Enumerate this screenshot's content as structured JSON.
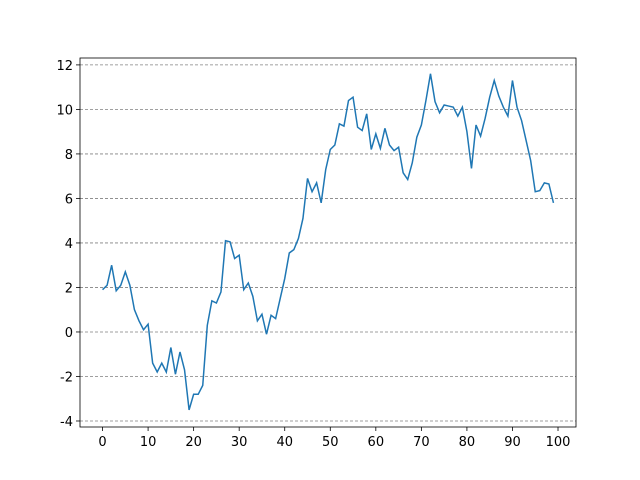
{
  "chart_data": {
    "type": "line",
    "x": [
      0,
      1,
      2,
      3,
      4,
      5,
      6,
      7,
      8,
      9,
      10,
      11,
      12,
      13,
      14,
      15,
      16,
      17,
      18,
      19,
      20,
      21,
      22,
      23,
      24,
      25,
      26,
      27,
      28,
      29,
      30,
      31,
      32,
      33,
      34,
      35,
      36,
      37,
      38,
      39,
      40,
      41,
      42,
      43,
      44,
      45,
      46,
      47,
      48,
      49,
      50,
      51,
      52,
      53,
      54,
      55,
      56,
      57,
      58,
      59,
      60,
      61,
      62,
      63,
      64,
      65,
      66,
      67,
      68,
      69,
      70,
      71,
      72,
      73,
      74,
      75,
      76,
      77,
      78,
      79,
      80,
      81,
      82,
      83,
      84,
      85,
      86,
      87,
      88,
      89,
      90,
      91,
      92,
      93,
      94,
      95,
      96,
      97,
      98,
      99
    ],
    "series": [
      {
        "color": "#1f77b4",
        "values": [
          1.9,
          2.1,
          3.0,
          1.85,
          2.1,
          2.7,
          2.1,
          1.0,
          0.5,
          0.1,
          0.35,
          -1.4,
          -1.8,
          -1.4,
          -1.8,
          -0.7,
          -1.9,
          -0.9,
          -1.7,
          -3.5,
          -2.8,
          -2.8,
          -2.4,
          0.3,
          1.4,
          1.3,
          1.8,
          4.1,
          4.05,
          3.3,
          3.45,
          1.9,
          2.2,
          1.6,
          0.5,
          0.8,
          -0.1,
          0.75,
          0.6,
          1.5,
          2.4,
          3.55,
          3.7,
          4.2,
          5.1,
          6.9,
          6.3,
          6.7,
          5.8,
          7.3,
          8.2,
          8.4,
          9.35,
          9.25,
          10.4,
          10.55,
          9.2,
          9.05,
          9.8,
          8.2,
          8.9,
          8.25,
          9.15,
          8.4,
          8.15,
          8.3,
          7.15,
          6.85,
          7.6,
          8.75,
          9.3,
          10.4,
          11.6,
          10.35,
          9.85,
          10.2,
          10.15,
          10.1,
          9.7,
          10.1,
          9.0,
          7.35,
          9.3,
          8.8,
          9.6,
          10.55,
          11.3,
          10.6,
          10.1,
          9.7,
          11.3,
          10.1,
          9.5,
          8.6,
          7.7,
          6.3,
          6.35,
          6.7,
          6.65,
          5.8
        ]
      }
    ],
    "xlim": [
      -4.95,
      103.95
    ],
    "xticks": [
      0,
      10,
      20,
      30,
      40,
      50,
      60,
      70,
      80,
      90,
      100
    ],
    "ylim": [
      -4.27,
      12.31
    ],
    "yticks": [
      -4,
      -2,
      0,
      2,
      4,
      6,
      8,
      10,
      12
    ],
    "grid": "y"
  }
}
